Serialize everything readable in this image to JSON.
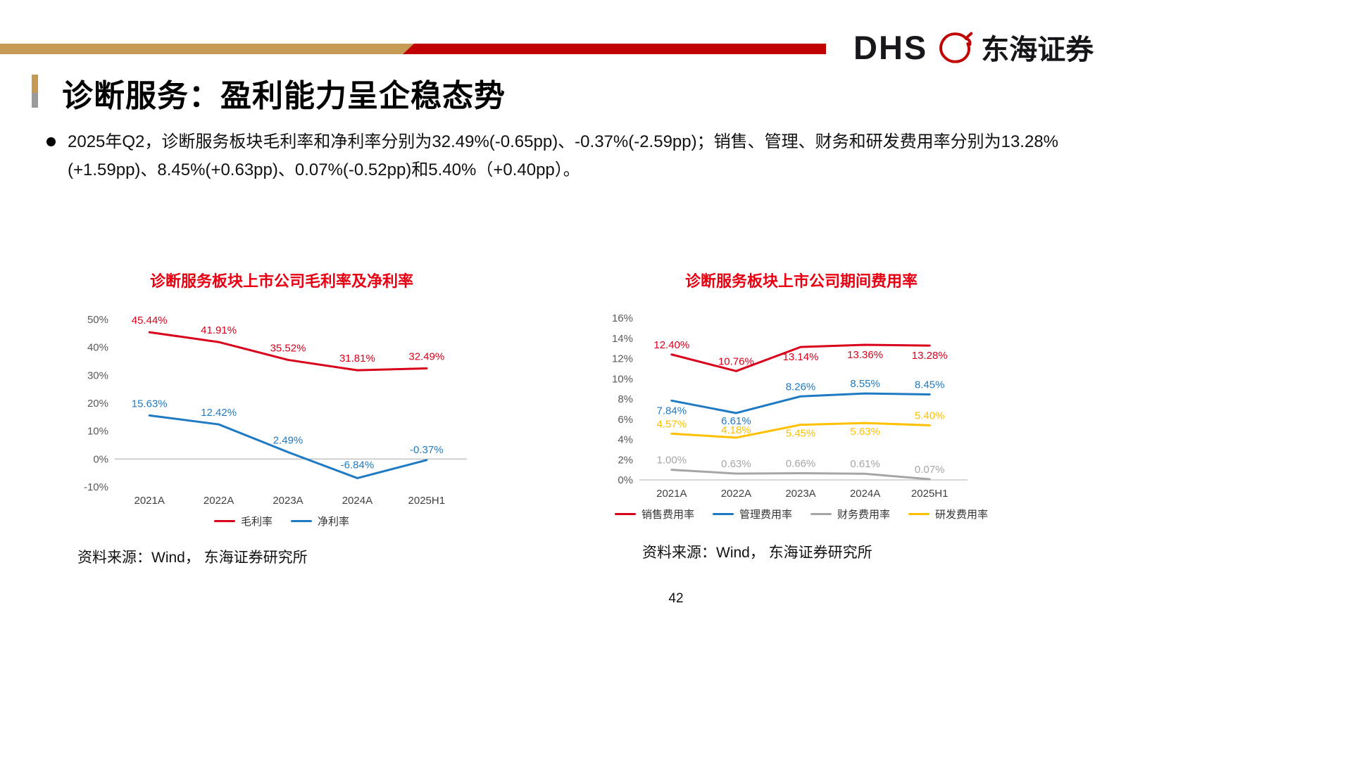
{
  "header": {
    "logo": {
      "dhs": "DHS",
      "brand": "东海证券"
    },
    "bar_colors": {
      "gold": "#c49a55",
      "red": "#c00000"
    }
  },
  "title": {
    "text": "诊断服务：盈利能力呈企稳态势"
  },
  "bullet": {
    "text": "2025年Q2，诊断服务板块毛利率和净利率分别为32.49%(-0.65pp)、-0.37%(-2.59pp)；销售、管理、财务和研发费用率分别为13.28%(+1.59pp)、8.45%(+0.63pp)、0.07%(-0.52pp)和5.40%（+0.40pp）。"
  },
  "colors": {
    "accent_red": "#e60012",
    "line_red": "#d9001b",
    "line_blue": "#1f7ac4",
    "line_gray": "#a6a6a6",
    "line_yellow": "#ffc000"
  },
  "chart_data": [
    {
      "type": "line",
      "title": "诊断服务板块上市公司毛利率及净利率",
      "categories": [
        "2021A",
        "2022A",
        "2023A",
        "2024A",
        "2025H1"
      ],
      "ylim": [
        -10,
        50
      ],
      "ytick_step": 10,
      "axis_at": 0,
      "grid": false,
      "legend_position": "bottom",
      "series": [
        {
          "name": "毛利率",
          "color": "#d9001b",
          "values": [
            45.44,
            41.91,
            35.52,
            31.81,
            32.49
          ],
          "label_dy": [
            -12,
            -12,
            -12,
            -12,
            -12
          ]
        },
        {
          "name": "净利率",
          "color": "#1f7ac4",
          "values": [
            15.63,
            12.42,
            2.49,
            -6.84,
            -0.37
          ],
          "label_dy": [
            -12,
            -12,
            -12,
            -14,
            -10
          ]
        }
      ]
    },
    {
      "type": "line",
      "title": "诊断服务板块上市公司期间费用率",
      "categories": [
        "2021A",
        "2022A",
        "2023A",
        "2024A",
        "2025H1"
      ],
      "ylim": [
        0,
        16
      ],
      "ytick_step": 2,
      "axis_at": 0,
      "grid": false,
      "legend_position": "bottom",
      "series": [
        {
          "name": "销售费用率",
          "color": "#d9001b",
          "values": [
            12.4,
            10.76,
            13.14,
            13.36,
            13.28
          ],
          "label_dy": [
            -9,
            -9,
            19,
            19,
            19
          ]
        },
        {
          "name": "管理费用率",
          "color": "#1f7ac4",
          "values": [
            7.84,
            6.61,
            8.26,
            8.55,
            8.45
          ],
          "label_dy": [
            19,
            16,
            -9,
            -9,
            -9
          ]
        },
        {
          "name": "财务费用率",
          "color": "#a6a6a6",
          "values": [
            1.0,
            0.63,
            0.66,
            0.61,
            0.07
          ],
          "label_dy": [
            -9,
            -9,
            -9,
            -9,
            -9
          ]
        },
        {
          "name": "研发费用率",
          "color": "#ffc000",
          "values": [
            4.57,
            4.18,
            5.45,
            5.63,
            5.4
          ],
          "label_dy": [
            -9,
            -6,
            17,
            17,
            -9
          ]
        }
      ]
    }
  ],
  "sources": {
    "left": "资料来源：Wind， 东海证券研究所",
    "right": "资料来源：Wind， 东海证券研究所"
  },
  "page": {
    "number": "42"
  }
}
